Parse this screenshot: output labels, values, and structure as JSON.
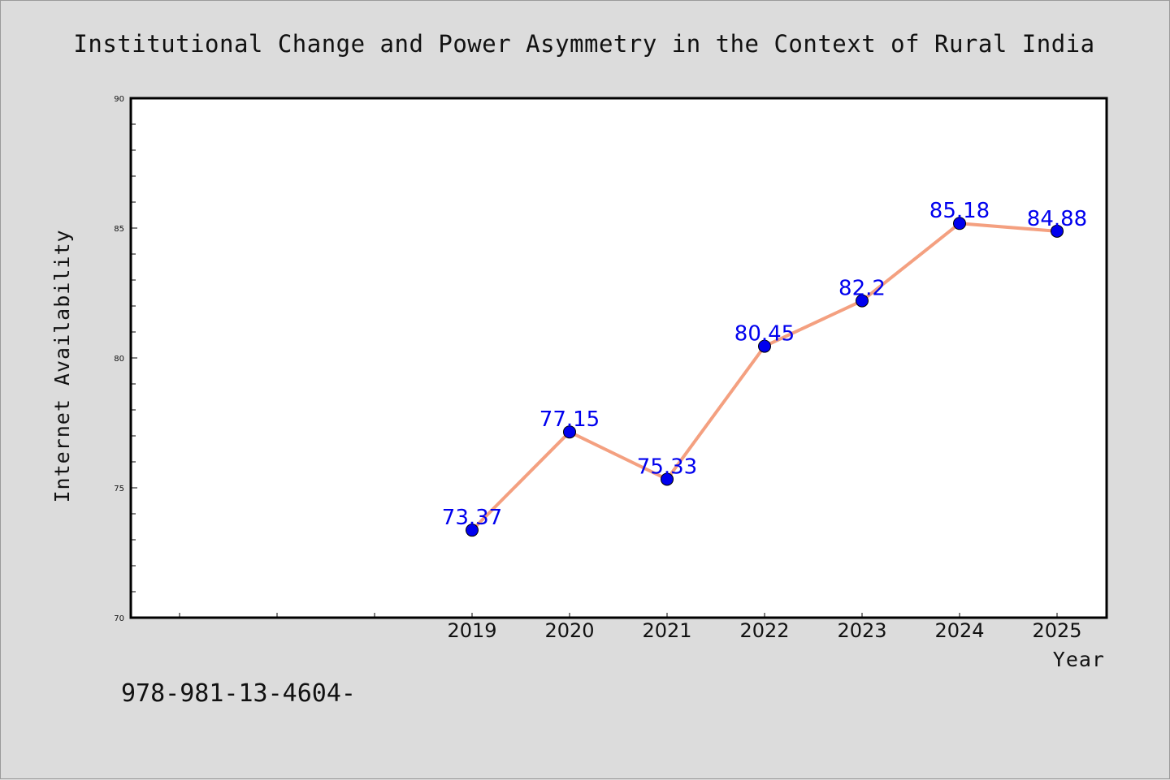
{
  "chart_data": {
    "type": "line",
    "title": "Institutional Change and Power Asymmetry in the Context of Rural India",
    "xlabel": "Year",
    "ylabel": "Internet Availability",
    "x_categories": [
      "",
      "",
      "",
      "2019",
      "2020",
      "2021",
      "2022",
      "2023",
      "2024",
      "2025"
    ],
    "series": [
      {
        "x": [
          "2019",
          "2020",
          "2021",
          "2022",
          "2023",
          "2024",
          "2025"
        ],
        "values": [
          73.37,
          77.15,
          75.33,
          80.45,
          82.2,
          85.18,
          84.88
        ],
        "labels": [
          "73.37",
          "77.15",
          "75.33",
          "80.45",
          "82.2",
          "85.18",
          "84.88"
        ]
      }
    ],
    "ylim": [
      70,
      90
    ],
    "yticks": [
      "70",
      "75",
      "80",
      "85",
      "90"
    ],
    "grid": false,
    "line_color": "#f4a080",
    "marker_color": "#0000ee",
    "label_color": "#0000ee"
  },
  "footnote": "978-981-13-4604-"
}
